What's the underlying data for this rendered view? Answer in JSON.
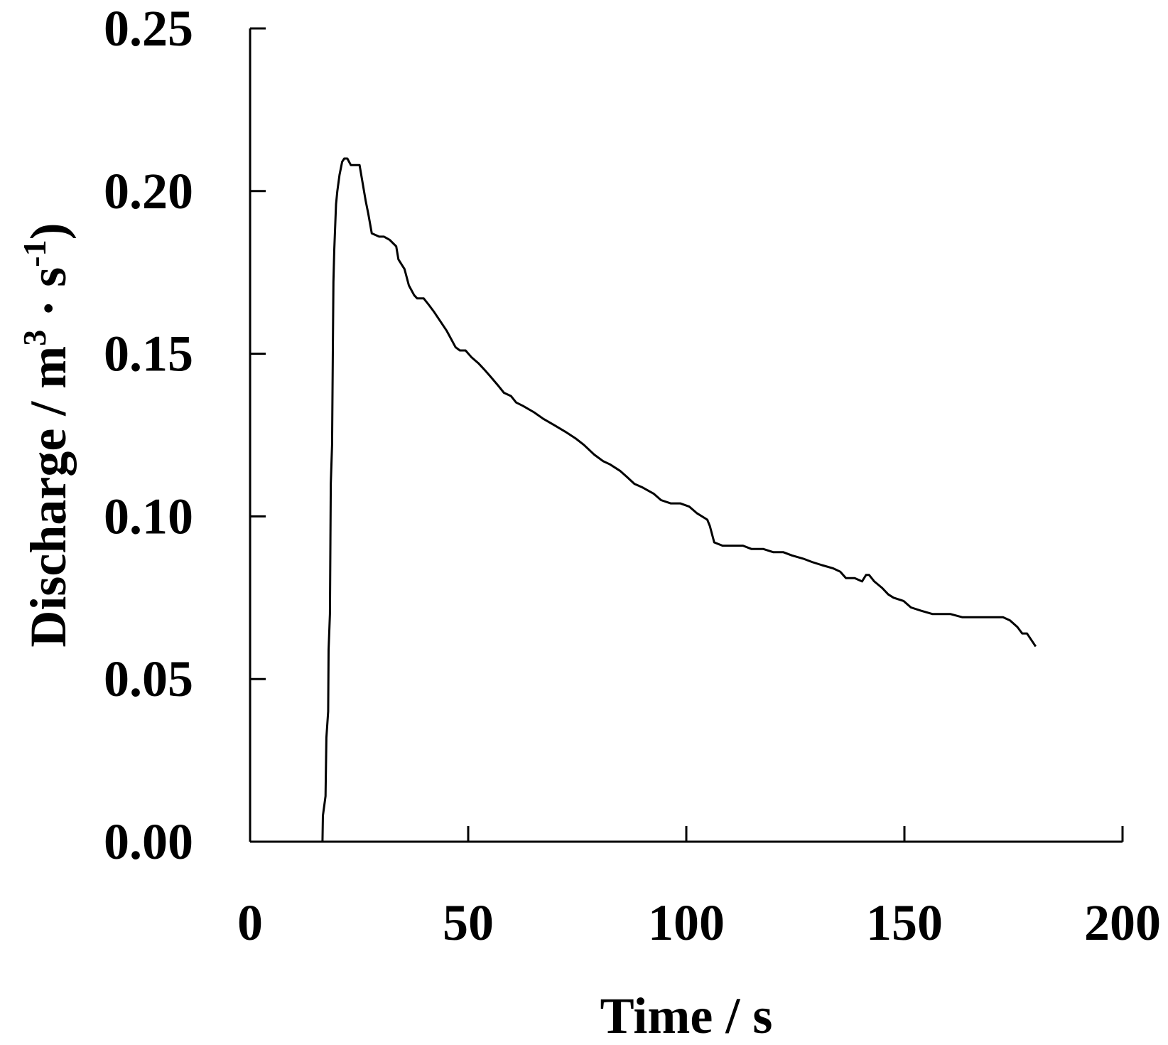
{
  "chart_data": {
    "type": "line",
    "title": "",
    "xlabel": "Time / s",
    "ylabel": {
      "prefix": "Discharge / m",
      "sup1": "3",
      "middle": " · s",
      "sup2": "-1",
      "suffix": ")"
    },
    "xlim": [
      0,
      200
    ],
    "ylim": [
      0,
      0.25
    ],
    "x_ticks": [
      0,
      50,
      100,
      150,
      200
    ],
    "x_tick_labels": [
      "0",
      "50",
      "100",
      "150",
      "200"
    ],
    "y_ticks": [
      0,
      0.05,
      0.1,
      0.15,
      0.2,
      0.25
    ],
    "y_tick_labels": [
      "0.00",
      "0.05",
      "0.10",
      "0.15",
      "0.20",
      "0.25"
    ],
    "grid": false,
    "legend": "none",
    "line_color": "#000000",
    "series": [
      {
        "x": [
          0,
          16.6,
          16.7,
          17.3,
          17.5,
          17.9,
          18.0,
          18.3,
          18.5,
          18.8,
          19.1,
          19.3,
          19.7,
          20.0,
          20.5,
          21.1,
          21.6,
          22.3,
          23.1,
          23.6,
          24.9,
          25.1,
          26.5,
          27.1,
          27.9,
          29.6,
          30.7,
          32.0,
          33.5,
          34.0,
          35.4,
          36.4,
          37.6,
          38.3,
          39.8,
          41.0,
          42.1,
          43.6,
          45.1,
          46.3,
          47.1,
          48.1,
          49.4,
          50.7,
          52.4,
          53.8,
          55.1,
          57.0,
          58.2,
          59.8,
          61.0,
          62.5,
          65.1,
          67.2,
          69.8,
          72.3,
          74.6,
          76.5,
          78.9,
          80.9,
          82.5,
          84.8,
          86.5,
          88.1,
          89.8,
          92.5,
          94.2,
          96.4,
          98.6,
          100.7,
          102.4,
          104.8,
          105.4,
          106.4,
          108.3,
          111.6,
          113.0,
          114.9,
          117.6,
          119.9,
          122.2,
          124.2,
          126.8,
          128.8,
          131.1,
          133.7,
          135.3,
          136.6,
          137.3,
          138.6,
          140.3,
          141.2,
          141.9,
          143.1,
          144.9,
          146.3,
          147.5,
          149.8,
          151.5,
          153.8,
          156.4,
          158.3,
          160.5,
          163.3,
          165.9,
          167.4,
          168.6,
          171.3,
          172.6,
          174.2,
          175.9,
          177.0,
          178.1,
          180.1
        ],
        "y": [
          0.0,
          0.0,
          0.008,
          0.014,
          0.032,
          0.04,
          0.059,
          0.07,
          0.11,
          0.122,
          0.172,
          0.182,
          0.196,
          0.2,
          0.205,
          0.209,
          0.21,
          0.21,
          0.208,
          0.208,
          0.208,
          0.208,
          0.197,
          0.193,
          0.187,
          0.186,
          0.186,
          0.185,
          0.183,
          0.179,
          0.176,
          0.171,
          0.168,
          0.167,
          0.167,
          0.165,
          0.163,
          0.16,
          0.157,
          0.154,
          0.152,
          0.151,
          0.151,
          0.149,
          0.147,
          0.145,
          0.143,
          0.14,
          0.138,
          0.137,
          0.135,
          0.134,
          0.132,
          0.13,
          0.128,
          0.126,
          0.124,
          0.122,
          0.119,
          0.117,
          0.116,
          0.114,
          0.112,
          0.11,
          0.109,
          0.107,
          0.105,
          0.104,
          0.104,
          0.103,
          0.101,
          0.099,
          0.097,
          0.092,
          0.091,
          0.091,
          0.091,
          0.09,
          0.09,
          0.089,
          0.089,
          0.088,
          0.087,
          0.086,
          0.085,
          0.084,
          0.083,
          0.081,
          0.081,
          0.081,
          0.08,
          0.082,
          0.082,
          0.08,
          0.078,
          0.076,
          0.075,
          0.074,
          0.072,
          0.071,
          0.07,
          0.07,
          0.07,
          0.069,
          0.069,
          0.069,
          0.069,
          0.069,
          0.069,
          0.068,
          0.066,
          0.064,
          0.064,
          0.06
        ]
      }
    ]
  }
}
